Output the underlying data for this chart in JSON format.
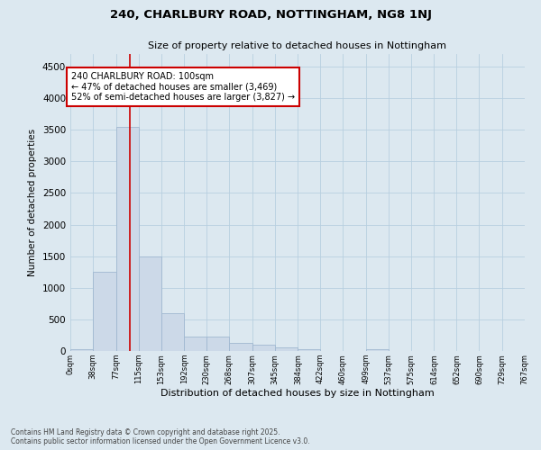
{
  "title1": "240, CHARLBURY ROAD, NOTTINGHAM, NG8 1NJ",
  "title2": "Size of property relative to detached houses in Nottingham",
  "xlabel": "Distribution of detached houses by size in Nottingham",
  "ylabel": "Number of detached properties",
  "bar_values": [
    25,
    1250,
    3550,
    1500,
    600,
    230,
    230,
    130,
    95,
    60,
    25,
    5,
    0,
    30,
    0,
    0,
    0,
    0,
    0,
    0
  ],
  "bin_edges": [
    0,
    38,
    77,
    115,
    153,
    192,
    230,
    268,
    307,
    345,
    384,
    422,
    460,
    499,
    537,
    575,
    614,
    652,
    690,
    729,
    767
  ],
  "tick_labels": [
    "0sqm",
    "38sqm",
    "77sqm",
    "115sqm",
    "153sqm",
    "192sqm",
    "230sqm",
    "268sqm",
    "307sqm",
    "345sqm",
    "384sqm",
    "422sqm",
    "460sqm",
    "499sqm",
    "537sqm",
    "575sqm",
    "614sqm",
    "652sqm",
    "690sqm",
    "729sqm",
    "767sqm"
  ],
  "bar_color": "#ccd9e8",
  "bar_edgecolor": "#a0b8d0",
  "grid_color": "#b8cfe0",
  "bg_color": "#dce8f0",
  "red_line_x": 100,
  "annotation_text": "240 CHARLBURY ROAD: 100sqm\n← 47% of detached houses are smaller (3,469)\n52% of semi-detached houses are larger (3,827) →",
  "annotation_box_color": "#ffffff",
  "annotation_edge_color": "#cc0000",
  "vline_color": "#cc0000",
  "ylim": [
    0,
    4700
  ],
  "yticks": [
    0,
    500,
    1000,
    1500,
    2000,
    2500,
    3000,
    3500,
    4000,
    4500
  ],
  "footer1": "Contains HM Land Registry data © Crown copyright and database right 2025.",
  "footer2": "Contains public sector information licensed under the Open Government Licence v3.0."
}
